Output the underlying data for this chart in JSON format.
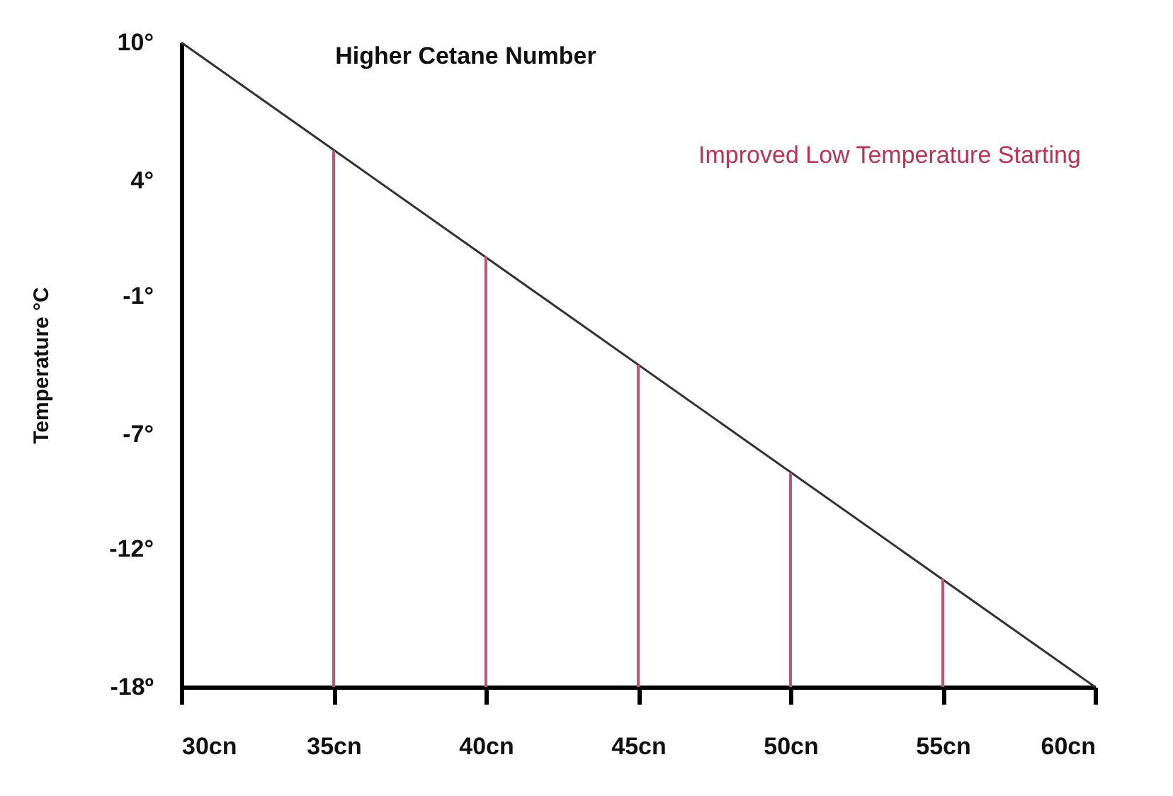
{
  "chart_data": {
    "type": "line",
    "title": "Higher Cetane Number",
    "ylabel": "Temperature °C",
    "annotations": [
      "Improved Low Temperature Starting"
    ],
    "xlim": [
      30,
      60
    ],
    "xticks": [
      {
        "value": 30,
        "label": "30cn"
      },
      {
        "value": 35,
        "label": "35cn"
      },
      {
        "value": 40,
        "label": "40cn"
      },
      {
        "value": 45,
        "label": "45cn"
      },
      {
        "value": 50,
        "label": "50cn"
      },
      {
        "value": 55,
        "label": "55cn"
      },
      {
        "value": 60,
        "label": "60cn"
      }
    ],
    "ylim": [
      -18,
      10
    ],
    "yticks": [
      {
        "value": 10,
        "label": "10°"
      },
      {
        "value": 4,
        "label": "4°"
      },
      {
        "value": -1,
        "label": "-1°"
      },
      {
        "value": -7,
        "label": "-7°"
      },
      {
        "value": -12,
        "label": "-12°"
      },
      {
        "value": -18,
        "label": "-18º"
      }
    ],
    "grid": false,
    "series": [
      {
        "color": "#333333",
        "x": [
          30,
          60
        ],
        "values": [
          10,
          -18
        ]
      },
      {
        "type": "bar",
        "color": "#c8507a",
        "x": [
          35,
          40,
          45,
          50,
          55
        ],
        "base": [
          -18,
          -18,
          -18,
          -18,
          -18
        ],
        "values": [
          23.3,
          18.7,
          14,
          9.3,
          4.7
        ]
      }
    ]
  }
}
